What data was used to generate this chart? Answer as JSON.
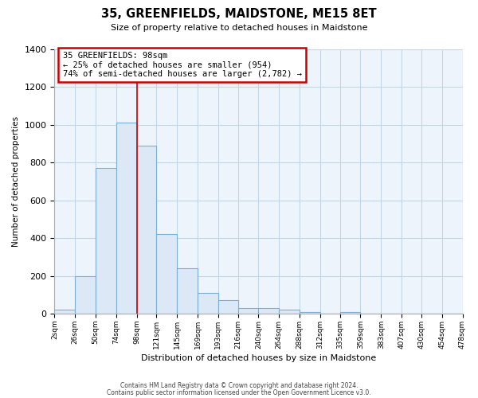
{
  "title": "35, GREENFIELDS, MAIDSTONE, ME15 8ET",
  "subtitle": "Size of property relative to detached houses in Maidstone",
  "xlabel": "Distribution of detached houses by size in Maidstone",
  "ylabel": "Number of detached properties",
  "bar_color": "#dce8f5",
  "bar_edge_color": "#7ab0d4",
  "background_color": "#ffffff",
  "plot_bg_color": "#eef4fb",
  "grid_color": "#c5d5e8",
  "annotation_line_color": "#cc0000",
  "annotation_box_color": "#cc0000",
  "annotation_text": "35 GREENFIELDS: 98sqm\n← 25% of detached houses are smaller (954)\n74% of semi-detached houses are larger (2,782) →",
  "property_sqm": 98,
  "bin_edges": [
    2,
    26,
    50,
    74,
    98,
    121,
    145,
    169,
    193,
    216,
    240,
    264,
    288,
    312,
    335,
    359,
    383,
    407,
    430,
    454,
    478
  ],
  "bin_counts": [
    20,
    200,
    770,
    1010,
    890,
    420,
    240,
    110,
    70,
    30,
    30,
    20,
    10,
    0,
    10,
    0,
    0,
    0,
    0,
    0
  ],
  "ylim": [
    0,
    1400
  ],
  "yticks": [
    0,
    200,
    400,
    600,
    800,
    1000,
    1200,
    1400
  ],
  "footer_line1": "Contains HM Land Registry data © Crown copyright and database right 2024.",
  "footer_line2": "Contains public sector information licensed under the Open Government Licence v3.0."
}
